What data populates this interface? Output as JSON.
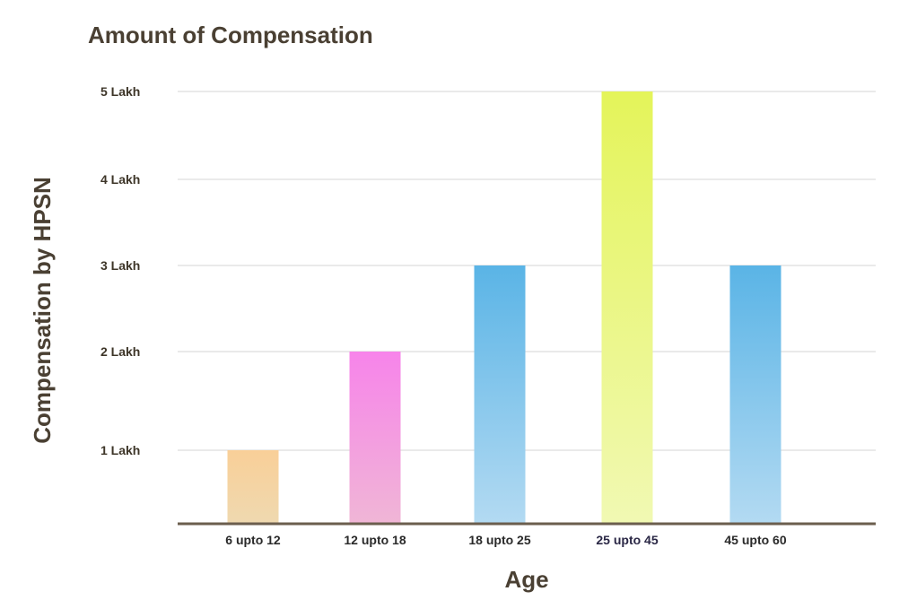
{
  "chart_data": {
    "type": "bar",
    "title": "Amount of Compensation",
    "xlabel": "Age",
    "ylabel": "Compensation by HPSN",
    "ytick_labels": [
      "1 Lakh",
      "2 Lakh",
      "3 Lakh",
      "4 Lakh",
      "5 Lakh"
    ],
    "yticks": [
      1,
      2,
      3,
      4,
      5
    ],
    "ylim": [
      0,
      5
    ],
    "grid": true,
    "categories": [
      "6 upto 12",
      "12 upto 18",
      "18 upto 25",
      "25 upto 45",
      "45 upto 60"
    ],
    "values": [
      1,
      2,
      3,
      5,
      3
    ],
    "colors": [
      {
        "top": "#f9cf98",
        "bottom": "#efd9b0"
      },
      {
        "top": "#f784ea",
        "bottom": "#f0b6d6"
      },
      {
        "top": "#5ab4e6",
        "bottom": "#b3daf2"
      },
      {
        "top": "#e4f45a",
        "bottom": "#f1f9b3"
      },
      {
        "top": "#5ab4e6",
        "bottom": "#b3daf2"
      }
    ]
  }
}
